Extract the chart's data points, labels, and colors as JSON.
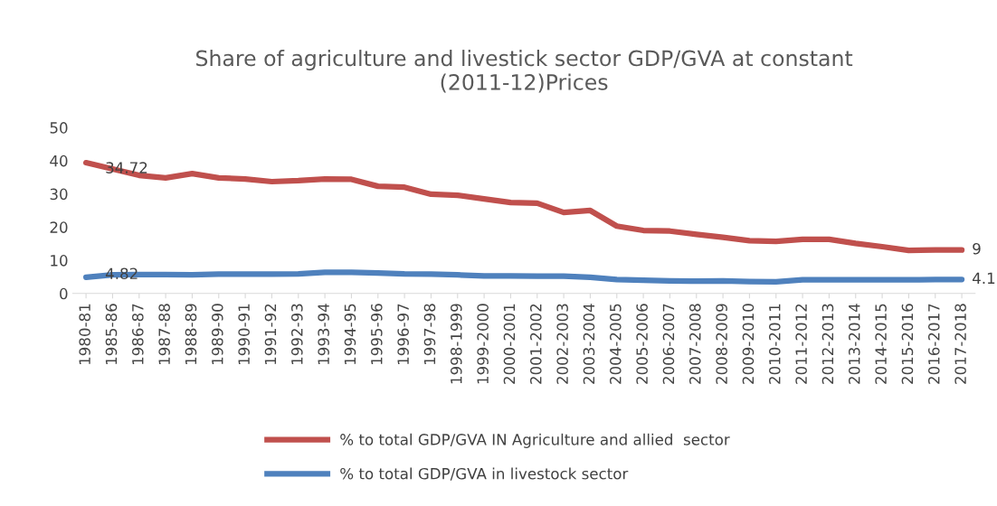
{
  "chart_data": {
    "type": "line",
    "title": "Share of agriculture and livestick sector GDP/GVA at constant\n(2011-12)Prices",
    "categories": [
      "1980-81",
      "1985-86",
      "1986-87",
      "1987-88",
      "1988-89",
      "1989-90",
      "1990-91",
      "1991-92",
      "1992-93",
      "1993-94",
      "1994-95",
      "1995-96",
      "1996-97",
      "1997-98",
      "1998-1999",
      "1999-2000",
      "2000-2001",
      "2001-2002",
      "2002-2003",
      "2003-2004",
      "2004-2005",
      "2005-2006",
      "2006-2007",
      "2007-2008",
      "2008-2009",
      "2009-2010",
      "2010-2011",
      "2011-2012",
      "2012-2013",
      "2013-2014",
      "2014-2015",
      "2015-2016",
      "2016-2017",
      "2017-2018"
    ],
    "series": [
      {
        "name": "% to total GDP/GVA IN Agriculture and allied  sector",
        "color": "#c0504d",
        "values": [
          39.4,
          37.5,
          35.6,
          34.8,
          36.1,
          34.8,
          34.5,
          33.7,
          34.0,
          34.5,
          34.4,
          32.3,
          32.0,
          29.9,
          29.6,
          28.5,
          27.4,
          27.2,
          24.4,
          25.0,
          20.3,
          19.0,
          18.8,
          17.8,
          16.9,
          15.9,
          15.7,
          16.3,
          16.3,
          15.1,
          14.1,
          13.0,
          13.1,
          13.1
        ]
      },
      {
        "name": "% to total GDP/GVA in livestock sector",
        "color": "#4f81bd",
        "values": [
          4.9,
          5.6,
          5.7,
          5.7,
          5.6,
          5.8,
          5.8,
          5.8,
          5.9,
          6.4,
          6.4,
          6.2,
          5.9,
          5.8,
          5.6,
          5.3,
          5.3,
          5.2,
          5.2,
          4.9,
          4.2,
          4.0,
          3.8,
          3.7,
          3.8,
          3.6,
          3.5,
          4.1,
          4.1,
          4.1,
          4.1,
          4.1,
          4.2,
          4.2
        ]
      }
    ],
    "annotations": [
      {
        "text": "34.72",
        "x": "1985-86",
        "y": 37.5
      },
      {
        "text": "4.82",
        "x": "1985-86",
        "y": 5.6
      },
      {
        "text": "9",
        "x": "2017-2018",
        "y": 13.1
      },
      {
        "text": "4.1",
        "x": "2017-2018",
        "y": 4.2
      }
    ],
    "ylim": [
      0,
      50
    ],
    "yticks": [
      0,
      10,
      20,
      30,
      40,
      50
    ],
    "grid": false,
    "legend": "bottom",
    "marker": "none",
    "line_style": "solid"
  }
}
